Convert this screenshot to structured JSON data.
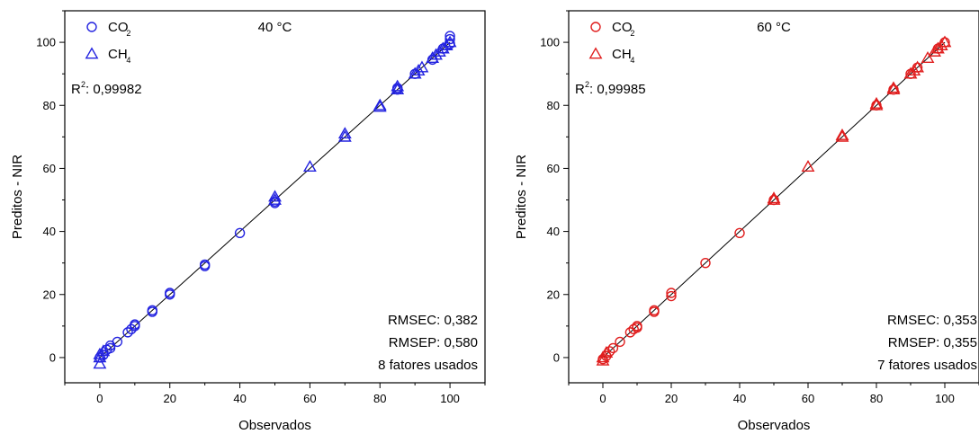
{
  "chart_data": [
    {
      "type": "scatter",
      "title": "40 °C",
      "xlabel": "Observados",
      "ylabel": "Preditos - NIR",
      "xlim": [
        -10,
        110
      ],
      "ylim": [
        -8,
        110
      ],
      "xticks": [
        0,
        20,
        40,
        60,
        80,
        100
      ],
      "yticks": [
        0,
        20,
        40,
        60,
        80,
        100
      ],
      "color": "#2323e0",
      "legend_position": "top-left",
      "r2_label": "R",
      "r2_sup": "2",
      "r2_value": ": 0,99982",
      "stats": [
        "RMSEC: 0,382",
        "RMSEP: 0,580",
        "8 fatores usados"
      ],
      "fit_line": [
        [
          0,
          0
        ],
        [
          100,
          100
        ]
      ],
      "series": [
        {
          "name": "CO",
          "name_sub": "2",
          "marker": "circle",
          "x": [
            0,
            1,
            2,
            3,
            3,
            5,
            8,
            9,
            10,
            10,
            15,
            15,
            20,
            20,
            30,
            30,
            40,
            50,
            50,
            85,
            85,
            90,
            95,
            98,
            100,
            100,
            100
          ],
          "y": [
            0,
            0.8,
            2.5,
            3,
            3.8,
            5,
            8,
            9,
            10,
            10.5,
            14.5,
            15,
            20,
            20.5,
            29,
            29.5,
            39.5,
            49,
            49.5,
            85,
            85.5,
            90,
            94.5,
            98,
            99.5,
            101,
            102
          ]
        },
        {
          "name": "CH",
          "name_sub": "4",
          "marker": "triangle",
          "x": [
            0,
            0,
            0,
            1,
            50,
            50,
            60,
            70,
            70,
            80,
            80,
            85,
            85,
            90,
            91,
            92,
            95,
            96,
            97,
            98,
            99,
            100
          ],
          "y": [
            -2,
            0,
            1,
            2,
            50,
            51,
            60.5,
            70,
            71,
            79.5,
            80,
            85,
            86,
            90,
            91,
            92,
            95,
            96,
            97,
            98,
            99,
            100
          ]
        }
      ]
    },
    {
      "type": "scatter",
      "title": "60 °C",
      "xlabel": "Observados",
      "ylabel": "Preditos - NIR",
      "xlim": [
        -10,
        110
      ],
      "ylim": [
        -8,
        110
      ],
      "xticks": [
        0,
        20,
        40,
        60,
        80,
        100
      ],
      "yticks": [
        0,
        20,
        40,
        60,
        80,
        100
      ],
      "color": "#e01e1e",
      "legend_position": "top-left",
      "r2_label": "R",
      "r2_sup": "2",
      "r2_value": ": 0,99985",
      "stats": [
        "RMSEC: 0,353",
        "RMSEP: 0,355",
        "7 fatores usados"
      ],
      "fit_line": [
        [
          0,
          0
        ],
        [
          100,
          100
        ]
      ],
      "series": [
        {
          "name": "CO",
          "name_sub": "2",
          "marker": "circle",
          "x": [
            0,
            1,
            2,
            3,
            5,
            8,
            9,
            10,
            10,
            15,
            15,
            20,
            20,
            30,
            40,
            50,
            80,
            85,
            90,
            92,
            98,
            100
          ],
          "y": [
            -0.5,
            0.5,
            2,
            3,
            5,
            8,
            9,
            9.5,
            10,
            14.5,
            15,
            19.5,
            20.5,
            30,
            39.5,
            50,
            80,
            85,
            90,
            92,
            98,
            100
          ]
        },
        {
          "name": "CH",
          "name_sub": "4",
          "marker": "triangle",
          "x": [
            0,
            0,
            1,
            50,
            50,
            60,
            70,
            70,
            80,
            80,
            85,
            85,
            90,
            91,
            92,
            95,
            97,
            98,
            99,
            100
          ],
          "y": [
            -1,
            0,
            1.5,
            50,
            50.5,
            60.5,
            70,
            70.5,
            80,
            80.5,
            85,
            85.5,
            90,
            91,
            92,
            95,
            97,
            98,
            99,
            100
          ]
        }
      ]
    }
  ]
}
